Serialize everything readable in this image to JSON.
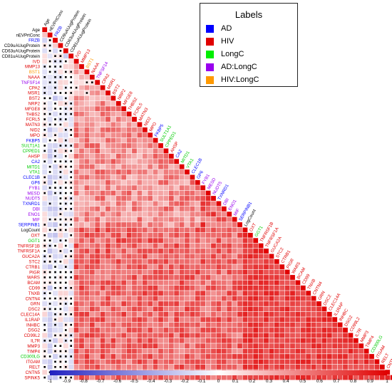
{
  "chart_data": {
    "type": "heatmap",
    "title": "",
    "variables": [
      {
        "name": "Age",
        "group": "none"
      },
      {
        "name": "nEVPrtConc",
        "group": "none"
      },
      {
        "name": "FRZB",
        "group": "AD"
      },
      {
        "name": "CD9uAUugProtein",
        "group": "none"
      },
      {
        "name": "CD63uAUugProtein",
        "group": "none"
      },
      {
        "name": "CD81uAUugProtein",
        "group": "none"
      },
      {
        "name": "IVD",
        "group": "HIV"
      },
      {
        "name": "MMP13",
        "group": "HIV"
      },
      {
        "name": "BST1",
        "group": "HIV:LongC"
      },
      {
        "name": "NAAA",
        "group": "HIV"
      },
      {
        "name": "TNFSF14",
        "group": "AD:LongC"
      },
      {
        "name": "CPA2",
        "group": "HIV"
      },
      {
        "name": "MSR1",
        "group": "HIV"
      },
      {
        "name": "BST2",
        "group": "HIV"
      },
      {
        "name": "NRP2",
        "group": "HIV"
      },
      {
        "name": "MFGE8",
        "group": "HIV"
      },
      {
        "name": "THBS2",
        "group": "HIV"
      },
      {
        "name": "FCRL5",
        "group": "HIV"
      },
      {
        "name": "MATN3",
        "group": "HIV"
      },
      {
        "name": "NID2",
        "group": "HIV"
      },
      {
        "name": "MPO",
        "group": "HIV"
      },
      {
        "name": "FKBP5",
        "group": "AD"
      },
      {
        "name": "SULT1A1",
        "group": "LongC"
      },
      {
        "name": "CPPED1",
        "group": "LongC"
      },
      {
        "name": "AHSP",
        "group": "HIV"
      },
      {
        "name": "CA2",
        "group": "AD"
      },
      {
        "name": "MITD1",
        "group": "LongC"
      },
      {
        "name": "VTA1",
        "group": "LongC"
      },
      {
        "name": "CLEC1B",
        "group": "AD"
      },
      {
        "name": "GP6",
        "group": "AD"
      },
      {
        "name": "FYB1",
        "group": "AD:LongC"
      },
      {
        "name": "MESD",
        "group": "AD:LongC"
      },
      {
        "name": "NUDT5",
        "group": "AD:LongC"
      },
      {
        "name": "TXNRD1",
        "group": "AD"
      },
      {
        "name": "DBI",
        "group": "AD:LongC"
      },
      {
        "name": "ENO1",
        "group": "AD:LongC"
      },
      {
        "name": "MIF",
        "group": "AD:LongC"
      },
      {
        "name": "SERPINB1",
        "group": "AD"
      },
      {
        "name": "LogCount",
        "group": "none"
      },
      {
        "name": "OXT",
        "group": "HIV"
      },
      {
        "name": "GGT1",
        "group": "LongC"
      },
      {
        "name": "TNFRSF1B",
        "group": "HIV"
      },
      {
        "name": "TNFRSF1A",
        "group": "HIV"
      },
      {
        "name": "GUCA2A",
        "group": "HIV"
      },
      {
        "name": "STC2",
        "group": "HIV"
      },
      {
        "name": "CTRB1",
        "group": "HIV"
      },
      {
        "name": "PIGR",
        "group": "HIV"
      },
      {
        "name": "WARS",
        "group": "HIV"
      },
      {
        "name": "BCAM",
        "group": "HIV"
      },
      {
        "name": "CD99",
        "group": "HIV"
      },
      {
        "name": "TNXB",
        "group": "HIV"
      },
      {
        "name": "CNTN4",
        "group": "HIV"
      },
      {
        "name": "GRN",
        "group": "HIV"
      },
      {
        "name": "DSC2",
        "group": "HIV"
      },
      {
        "name": "CLEC14A",
        "group": "HIV"
      },
      {
        "name": "IL1RAP",
        "group": "HIV"
      },
      {
        "name": "INHBC",
        "group": "HIV"
      },
      {
        "name": "DSG2",
        "group": "HIV"
      },
      {
        "name": "CD99L2",
        "group": "HIV"
      },
      {
        "name": "IL7R",
        "group": "HIV"
      },
      {
        "name": "MMP3",
        "group": "HIV"
      },
      {
        "name": "TIMP4",
        "group": "HIV"
      },
      {
        "name": "CD300LG",
        "group": "LongC"
      },
      {
        "name": "ITGAM",
        "group": "HIV"
      },
      {
        "name": "RELT",
        "group": "HIV"
      },
      {
        "name": "CNTN5",
        "group": "HIV"
      },
      {
        "name": "SPINK5",
        "group": "HIV"
      }
    ],
    "colorbar": {
      "range": [
        -1,
        1
      ],
      "ticks": [
        "-1",
        "-0.9",
        "-0.8",
        "-0.7",
        "-0.6",
        "-0.5",
        "-0.4",
        "-0.3",
        "-0.2",
        "-0.1",
        "0",
        "0.1",
        "0.2",
        "0.3",
        "0.4",
        "0.5",
        "0.6",
        "0.7",
        "0.8",
        "0.9",
        "1"
      ],
      "low_color": "#2020c0",
      "mid_color": "#ffffff",
      "high_color": "#e00000"
    },
    "legend": {
      "title": "Labels",
      "position": "top-right",
      "entries": [
        {
          "label": "AD",
          "color": "#0000ff"
        },
        {
          "label": "HIV",
          "color": "#e00000"
        },
        {
          "label": "LongC",
          "color": "#00ee00"
        },
        {
          "label": "AD:LongC",
          "color": "#9900ee"
        },
        {
          "label": "HIV:LongC",
          "color": "#ff9900"
        }
      ]
    },
    "group_colors": {
      "none": "#000000",
      "AD": "#0000ff",
      "HIV": "#e00000",
      "LongC": "#00cc00",
      "AD:LongC": "#9900ee",
      "HIV:LongC": "#ff9900"
    },
    "blocks": {
      "clinical": 6,
      "inflammatory": [
        6,
        38
      ],
      "core": [
        38,
        67
      ]
    },
    "block_correlation": {
      "clinical_within": 0.05,
      "clinical_vs_proteins": 0.0,
      "proteins_within_inflammatory": 0.45,
      "proteins_within_core": 0.75,
      "inflammatory_vs_core": 0.6,
      "clinical_FRZB": -0.35
    },
    "black_dot_marker": "non-significant correlation"
  }
}
